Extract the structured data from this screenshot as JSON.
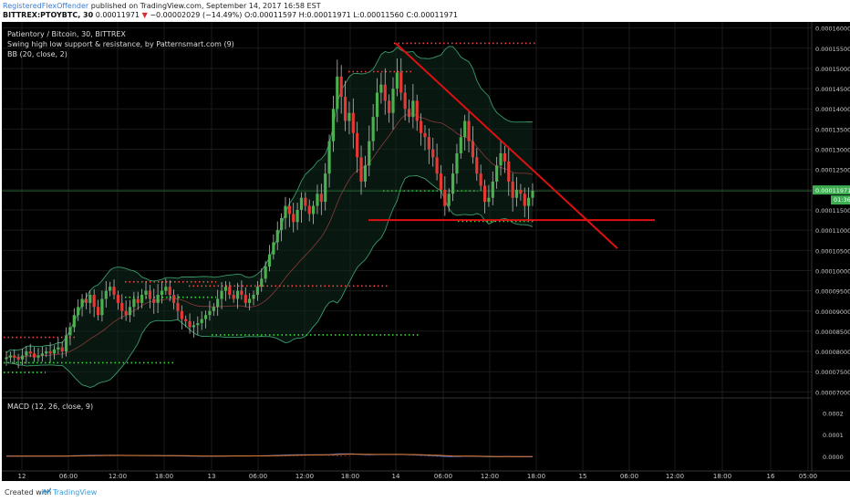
{
  "header": {
    "user": "RegisteredFlexOffender",
    "published": "published on TradingView.com, September 14, 2017 16:58 EST",
    "symbol": "BITTREX:PTOYBTC, 30",
    "last": "0.00011971",
    "change_arrow": "▼",
    "change": "−0.00002029 (−14.49%)",
    "ohlc": "O:0.00011597 H:0.00011971 L:0.00011560 C:0.00011971"
  },
  "legend": {
    "title": "Patientory / Bitcoin, 30, BITTREX",
    "line2": "Swing high low support & resistance, by Patternsmart.com (9)",
    "line3": "BB (20, close, 2)",
    "macd": "MACD (12, 26, close, 9)"
  },
  "price_axis": {
    "ticks": [
      "0.00016000",
      "0.00015500",
      "0.00015000",
      "0.00014500",
      "0.00014000",
      "0.00013500",
      "0.00013000",
      "0.00012500",
      "0.00012000",
      "0.00011500",
      "0.00011000",
      "0.00010500",
      "0.00010000",
      "0.00009500",
      "0.00009000",
      "0.00008500",
      "0.00008000",
      "0.00007500",
      "0.00007000"
    ],
    "last_label": "0.00011971",
    "countdown": "01:36"
  },
  "macd_axis": {
    "ticks": [
      "0.0002",
      "0.0001",
      "0.0000"
    ]
  },
  "time_axis": {
    "ticks": [
      "12",
      "06:00",
      "12:00",
      "18:00",
      "13",
      "06:00",
      "12:00",
      "18:00",
      "14",
      "06:00",
      "12:00",
      "18:00",
      "15",
      "06:00",
      "12:00",
      "18:00",
      "16",
      "05:00"
    ]
  },
  "colors": {
    "up": "#4caf50",
    "down": "#e53935",
    "resistance": "#ff4040",
    "support": "#33dd33",
    "trendline": "#e01010",
    "bb": "#3a9a6a",
    "macd": "#2f6fd6",
    "signal": "#e87b2a",
    "background": "#000000"
  },
  "chart_data": {
    "type": "candlestick",
    "symbol": "PTOYBTC",
    "interval": "30",
    "ylim": [
      6.85e-05,
      0.0001615
    ],
    "candles_approx_closes": [
      7.85e-05,
      7.9e-05,
      7.85e-05,
      7.8e-05,
      7.9e-05,
      8e-05,
      7.95e-05,
      7.85e-05,
      7.9e-05,
      7.95e-05,
      8e-05,
      7.95e-05,
      8.05e-05,
      8.1e-05,
      8e-05,
      8.4e-05,
      8.6e-05,
      8.9e-05,
      9.1e-05,
      9.3e-05,
      9.2e-05,
      9.4e-05,
      9.1e-05,
      8.9e-05,
      9.3e-05,
      9.5e-05,
      9.6e-05,
      9.4e-05,
      9.2e-05,
      9e-05,
      8.9e-05,
      9.1e-05,
      9.3e-05,
      9.2e-05,
      9.4e-05,
      9.5e-05,
      9.3e-05,
      9.2e-05,
      9.4e-05,
      9.5e-05,
      9.6e-05,
      9.4e-05,
      9.2e-05,
      9e-05,
      8.8e-05,
      8.75e-05,
      8.6e-05,
      8.65e-05,
      8.7e-05,
      8.8e-05,
      8.9e-05,
      9e-05,
      9.1e-05,
      9.3e-05,
      9.5e-05,
      9.6e-05,
      9.4e-05,
      9.3e-05,
      9.5e-05,
      9.4e-05,
      9.2e-05,
      9.3e-05,
      9.4e-05,
      9.6e-05,
      9.8e-05,
      0.000101,
      0.000104,
      0.000107,
      0.00011,
      0.000113,
      0.000116,
      0.000114,
      0.000112,
      0.000115,
      0.000118,
      0.000116,
      0.000114,
      0.000116,
      0.000119,
      0.000117,
      0.000124,
      0.000132,
      0.00014,
      0.000148,
      0.000143,
      0.000137,
      0.000139,
      0.000134,
      0.000128,
      0.000122,
      0.000126,
      0.000132,
      0.000138,
      0.000144,
      0.000146,
      0.000142,
      0.000139,
      0.000145,
      0.000149,
      0.000144,
      0.00014,
      0.000138,
      0.000142,
      0.000137,
      0.000134,
      0.000133,
      0.00013,
      0.000128,
      0.000124,
      0.00012,
      0.000116,
      0.000119,
      0.000124,
      0.000129,
      0.000133,
      0.000137,
      0.000132,
      0.000128,
      0.000124,
      0.000121,
      0.000117,
      0.000118,
      0.000122,
      0.000126,
      0.000129,
      0.000127,
      0.000122,
      0.000118,
      0.00012,
      0.000119,
      0.000116,
      0.000118,
      0.00011971
    ],
    "resistance_levels": [
      0.0001562,
      0.0001492,
      9.72e-05,
      9.62e-05,
      8.35e-05
    ],
    "support_levels": [
      0.0001197,
      0.0001122,
      9.34e-05,
      8.41e-05,
      7.72e-05,
      7.48e-05
    ],
    "trendline": {
      "from_price": 0.0001562,
      "to_price": 0.0001055
    },
    "horizontal_line_price": 0.0001125,
    "last_price": 0.00011971,
    "macd_ylim": [
      -6e-05,
      0.00026
    ]
  }
}
